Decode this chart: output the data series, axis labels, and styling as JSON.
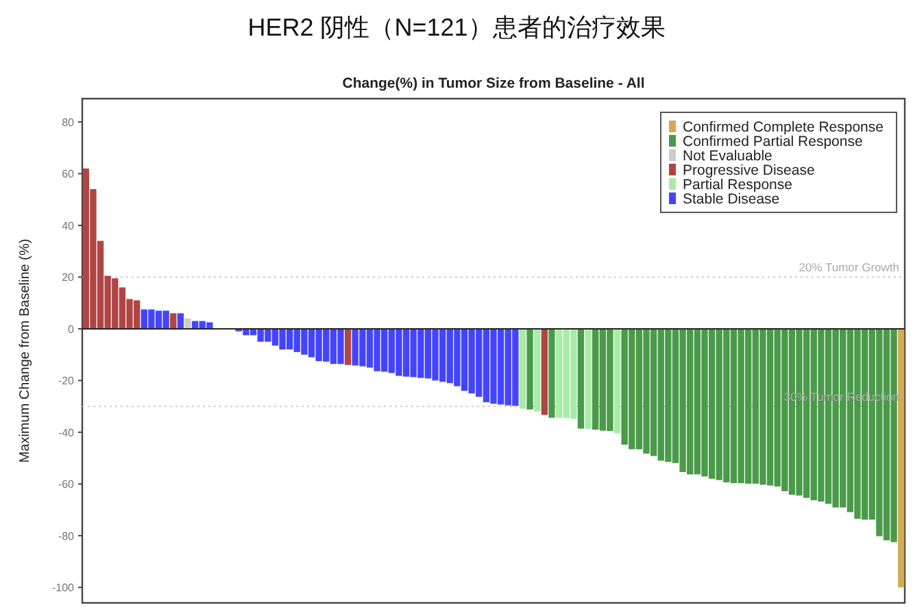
{
  "chart_data": {
    "type": "bar",
    "title": "HER2 阴性（N=121）患者的治疗效果",
    "subtitle": "Change(%) in Tumor Size from Baseline - All",
    "ylabel": "Maximum Change from Baseline (%)",
    "categories": [
      null,
      null,
      null,
      null,
      null,
      null,
      null,
      null,
      null,
      null,
      null,
      null,
      null,
      null,
      null,
      null,
      null,
      null,
      null,
      null,
      null,
      null,
      null,
      null,
      null,
      null,
      null,
      null,
      null,
      null,
      null,
      null,
      null,
      null,
      null,
      null,
      null,
      null,
      null,
      null,
      null,
      null,
      null,
      null,
      null,
      null,
      null,
      null,
      null,
      null,
      null,
      null,
      null,
      null,
      null,
      null,
      null,
      null,
      null,
      null,
      null,
      null,
      null,
      null,
      null,
      null,
      null,
      null,
      null,
      null,
      null,
      null,
      null,
      null,
      null,
      null,
      null,
      null,
      null,
      null,
      null,
      null,
      null,
      null,
      null,
      null,
      null,
      null,
      null,
      null,
      null,
      null,
      null,
      null,
      null,
      null,
      null,
      null,
      null,
      null,
      null,
      null,
      null,
      null,
      null,
      null,
      null,
      null,
      null,
      null,
      null,
      null,
      null
    ],
    "series": [
      {
        "name": "Confirmed Complete Response",
        "color": "#d4aa55",
        "values": [
          null,
          null,
          null,
          null,
          null,
          null,
          null,
          null,
          null,
          null,
          null,
          null,
          null,
          null,
          null,
          null,
          null,
          null,
          null,
          null,
          null,
          null,
          null,
          null,
          null,
          null,
          null,
          null,
          null,
          null,
          null,
          null,
          null,
          null,
          null,
          null,
          null,
          null,
          null,
          null,
          null,
          null,
          null,
          null,
          null,
          null,
          null,
          null,
          null,
          null,
          null,
          null,
          null,
          null,
          null,
          null,
          null,
          null,
          null,
          null,
          null,
          null,
          null,
          null,
          null,
          null,
          null,
          null,
          null,
          null,
          null,
          null,
          null,
          null,
          null,
          null,
          null,
          null,
          null,
          null,
          null,
          null,
          null,
          null,
          null,
          null,
          null,
          null,
          null,
          null,
          null,
          null,
          null,
          null,
          null,
          null,
          null,
          null,
          null,
          null,
          null,
          null,
          null,
          null,
          null,
          null,
          null,
          null,
          null,
          null,
          null,
          null,
          -100
        ]
      },
      {
        "name": "Confirmed Partial Response",
        "color": "#4a9a4a",
        "values": [
          null,
          null,
          null,
          null,
          null,
          null,
          null,
          null,
          null,
          null,
          null,
          null,
          null,
          null,
          null,
          null,
          null,
          null,
          null,
          null,
          null,
          null,
          null,
          null,
          null,
          null,
          null,
          null,
          null,
          null,
          null,
          null,
          null,
          null,
          null,
          null,
          null,
          null,
          null,
          null,
          null,
          null,
          null,
          null,
          null,
          null,
          null,
          null,
          null,
          null,
          null,
          null,
          null,
          null,
          null,
          null,
          null,
          null,
          null,
          null,
          null,
          -31.2,
          null,
          null,
          -34.4,
          null,
          null,
          null,
          -38.6,
          null,
          -39,
          -39.4,
          -39.5,
          null,
          -44.8,
          -46.6,
          -46.6,
          -48.3,
          -49.2,
          -51,
          -51.5,
          -51.9,
          -55.4,
          -56.3,
          -56.3,
          -57.1,
          -58,
          -58.5,
          -59.4,
          -59.7,
          -59.7,
          -59.9,
          -59.9,
          -60.3,
          -60.6,
          -61,
          -62.8,
          -64.2,
          -64.5,
          -65.4,
          -66.3,
          -66.8,
          -67.7,
          -69.1,
          -69.1,
          -70.9,
          -73.5,
          -73.8,
          -73.8,
          -80.2,
          -81.8,
          -82.5,
          null
        ]
      },
      {
        "name": "Not Evaluable",
        "color": "#cccccc",
        "values": [
          null,
          null,
          null,
          null,
          null,
          null,
          null,
          null,
          null,
          null,
          null,
          null,
          null,
          null,
          4,
          null,
          null,
          null,
          null,
          null,
          null,
          null,
          null,
          null,
          null,
          null,
          null,
          null,
          null,
          null,
          null,
          null,
          null,
          null,
          null,
          null,
          null,
          null,
          null,
          null,
          null,
          null,
          null,
          null,
          null,
          null,
          null,
          null,
          null,
          null,
          null,
          null,
          null,
          null,
          null,
          null,
          null,
          null,
          null,
          null,
          null,
          null,
          null,
          null,
          null,
          null,
          null,
          null,
          null,
          null,
          null,
          null,
          null,
          null,
          null,
          null,
          null,
          null,
          null,
          null,
          null,
          null,
          null,
          null,
          null,
          null,
          null,
          null,
          null,
          null,
          null,
          null,
          null,
          null,
          null,
          null,
          null,
          null,
          null,
          null,
          null,
          null,
          null,
          null,
          null,
          null,
          null,
          null,
          null,
          null,
          null,
          null,
          null
        ]
      },
      {
        "name": "Progressive Disease",
        "color": "#b04545",
        "values": [
          62,
          54,
          34,
          20.5,
          19.5,
          16,
          11.5,
          11,
          null,
          null,
          null,
          null,
          6,
          null,
          null,
          null,
          null,
          null,
          null,
          null,
          null,
          null,
          null,
          null,
          null,
          null,
          null,
          null,
          null,
          null,
          null,
          null,
          null,
          null,
          null,
          null,
          -14,
          null,
          null,
          null,
          null,
          null,
          null,
          null,
          null,
          null,
          null,
          null,
          null,
          null,
          null,
          null,
          null,
          null,
          null,
          null,
          null,
          null,
          null,
          null,
          null,
          null,
          null,
          -33.3,
          null,
          null,
          null,
          null,
          null,
          null,
          null,
          null,
          null,
          null,
          null,
          null,
          null,
          null,
          null,
          null,
          null,
          null,
          null,
          null,
          null,
          null,
          null,
          null,
          null,
          null,
          null,
          null,
          null,
          null,
          null,
          null,
          null,
          null,
          null,
          null,
          null,
          null,
          null,
          null,
          null,
          null,
          null,
          null,
          null,
          null,
          null,
          null,
          null
        ]
      },
      {
        "name": "Partial Response",
        "color": "#a8eca8",
        "values": [
          null,
          null,
          null,
          null,
          null,
          null,
          null,
          null,
          null,
          null,
          null,
          null,
          null,
          null,
          null,
          null,
          null,
          null,
          null,
          null,
          null,
          null,
          null,
          null,
          null,
          null,
          null,
          null,
          null,
          null,
          null,
          null,
          null,
          null,
          null,
          null,
          null,
          null,
          null,
          null,
          null,
          null,
          null,
          null,
          null,
          null,
          null,
          null,
          null,
          null,
          null,
          null,
          null,
          null,
          null,
          null,
          null,
          null,
          null,
          null,
          -30.9,
          null,
          -32,
          null,
          null,
          -34.4,
          -34.5,
          -34.8,
          null,
          -38.7,
          null,
          null,
          null,
          -40.4,
          null,
          null,
          null,
          null,
          null,
          null,
          null,
          null,
          null,
          null,
          null,
          null,
          null,
          null,
          null,
          null,
          null,
          null,
          null,
          null,
          null,
          null,
          null,
          null,
          null,
          null,
          null,
          null,
          null,
          null,
          null,
          null,
          null,
          null,
          null,
          null,
          null,
          null,
          null
        ]
      },
      {
        "name": "Stable Disease",
        "color": "#4444ff",
        "values": [
          null,
          null,
          null,
          null,
          null,
          null,
          null,
          null,
          7.5,
          7.5,
          7,
          7,
          null,
          6,
          null,
          3,
          3,
          2.5,
          null,
          null,
          null,
          -1,
          -2.5,
          -2.5,
          -5,
          -5,
          -6.5,
          -8,
          -8,
          -9,
          -10,
          -11,
          -12.5,
          -12.7,
          -13.6,
          -13.6,
          null,
          -14.2,
          -14.5,
          -15,
          -16.4,
          -16.6,
          -17.1,
          -18.2,
          -18.5,
          -18.7,
          -19,
          -19.2,
          -20,
          -20.5,
          -21,
          -22.2,
          -24,
          -25,
          -26.3,
          -28.4,
          -29,
          -29.3,
          -29.6,
          -29.8,
          null,
          null,
          null,
          null,
          null,
          null,
          null,
          null,
          null,
          null,
          null,
          null,
          null,
          null,
          null,
          null,
          null,
          null,
          null,
          null,
          null,
          null,
          null,
          null,
          null,
          null,
          null,
          null,
          null,
          null,
          null,
          null,
          null,
          null,
          null,
          null,
          null,
          null,
          null,
          null,
          null,
          null,
          null,
          null,
          null,
          null,
          null,
          null,
          null,
          null,
          null,
          null,
          null
        ]
      }
    ],
    "ylim": [
      -106,
      89
    ],
    "yticks": [
      -100,
      -80,
      -60,
      -40,
      -20,
      0,
      20,
      40,
      60,
      80
    ],
    "ref_lines": [
      {
        "axis": "y",
        "value": 20,
        "label": "20% Tumor Growth",
        "color": "#cccccc",
        "line_style": "dotted"
      },
      {
        "axis": "y",
        "value": -30,
        "label": "30% Tumor Reduction",
        "color": "#cccccc",
        "line_style": "dotted"
      }
    ],
    "legend": "top right"
  }
}
